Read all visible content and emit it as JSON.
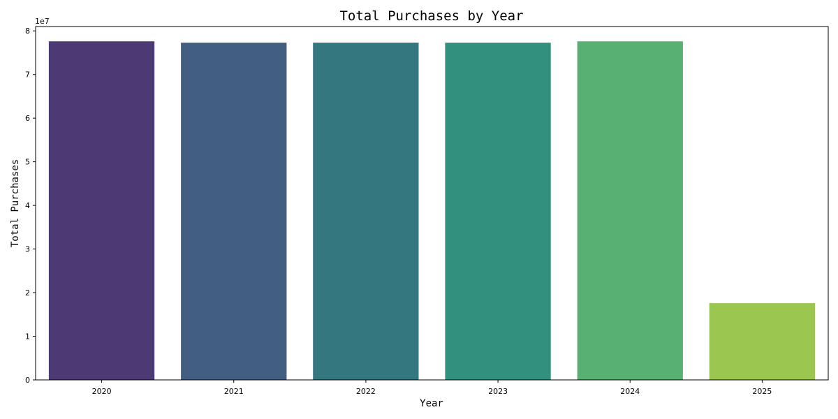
{
  "chart_data": {
    "type": "bar",
    "title": "Total Purchases by Year",
    "xlabel": "Year",
    "ylabel": "Total Purchases",
    "y_offset_label": "1e7",
    "categories": [
      "2020",
      "2021",
      "2022",
      "2023",
      "2024",
      "2025"
    ],
    "values": [
      77600000,
      77300000,
      77300000,
      77300000,
      77600000,
      17600000
    ],
    "colors": [
      "#4b3a73",
      "#425f82",
      "#35777f",
      "#32917e",
      "#59b073",
      "#9bc64f"
    ],
    "ylim": [
      0,
      81000000
    ],
    "yticks": [
      0,
      10000000,
      20000000,
      30000000,
      40000000,
      50000000,
      60000000,
      70000000,
      80000000
    ],
    "ytick_labels": [
      "0",
      "1",
      "2",
      "3",
      "4",
      "5",
      "6",
      "7",
      "8"
    ],
    "grid": false,
    "legend": "none"
  }
}
